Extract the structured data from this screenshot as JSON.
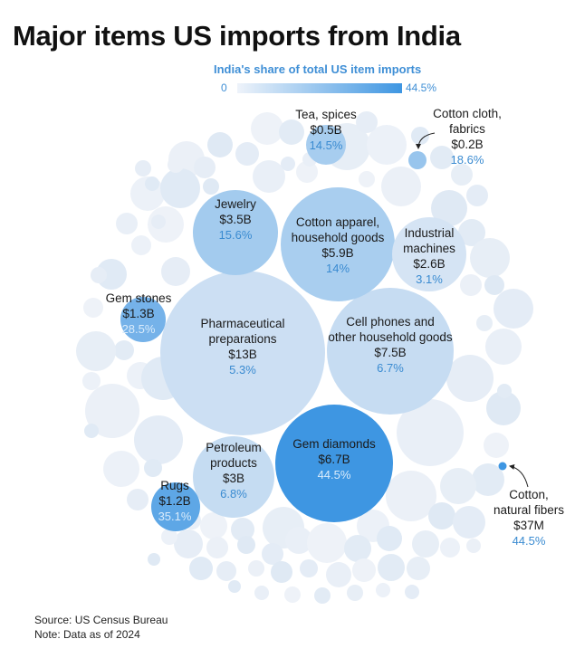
{
  "title": "Major items US imports from India",
  "legend": {
    "title": "India's share of total US item imports",
    "min_label": "0",
    "max_label": "44.5%",
    "max_value": 44.5
  },
  "source": "Source: US Census Bureau",
  "note": "Note: Data as of 2024",
  "colors": {
    "low": "#e6eef7",
    "high": "#3e96e2",
    "accent": "#3a8bd1"
  },
  "chart_data": {
    "type": "bubble",
    "title": "Major items US imports from India",
    "size_metric": "US import value from India",
    "color_metric": "India's share of total US item imports (%)",
    "items": [
      {
        "name": "Pharmaceutical preparations",
        "lines": [
          "Pharmaceutical",
          "preparations"
        ],
        "value_label": "$13B",
        "value_usd_b": 13,
        "share_label": "5.3%",
        "share": 5.3
      },
      {
        "name": "Gem diamonds",
        "lines": [
          "Gem diamonds"
        ],
        "value_label": "$6.7B",
        "value_usd_b": 6.7,
        "share_label": "44.5%",
        "share": 44.5
      },
      {
        "name": "Cell phones and other household goods",
        "lines": [
          "Cell phones and",
          "other household goods"
        ],
        "value_label": "$7.5B",
        "value_usd_b": 7.5,
        "share_label": "6.7%",
        "share": 6.7
      },
      {
        "name": "Cotton apparel, household goods",
        "lines": [
          "Cotton apparel,",
          "household goods"
        ],
        "value_label": "$5.9B",
        "value_usd_b": 5.9,
        "share_label": "14%",
        "share": 14
      },
      {
        "name": "Jewelry",
        "lines": [
          "Jewelry"
        ],
        "value_label": "$3.5B",
        "value_usd_b": 3.5,
        "share_label": "15.6%",
        "share": 15.6
      },
      {
        "name": "Petroleum products",
        "lines": [
          "Petroleum",
          "products"
        ],
        "value_label": "$3B",
        "value_usd_b": 3,
        "share_label": "6.8%",
        "share": 6.8
      },
      {
        "name": "Industrial machines",
        "lines": [
          "Industrial",
          "machines"
        ],
        "value_label": "$2.6B",
        "value_usd_b": 2.6,
        "share_label": "3.1%",
        "share": 3.1
      },
      {
        "name": "Gem stones",
        "lines": [
          "Gem stones"
        ],
        "value_label": "$1.3B",
        "value_usd_b": 1.3,
        "share_label": "28.5%",
        "share": 28.5
      },
      {
        "name": "Rugs",
        "lines": [
          "Rugs"
        ],
        "value_label": "$1.2B",
        "value_usd_b": 1.2,
        "share_label": "35.1%",
        "share": 35.1
      },
      {
        "name": "Tea, spices",
        "lines": [
          "Tea, spices"
        ],
        "value_label": "$0.5B",
        "value_usd_b": 0.5,
        "share_label": "14.5%",
        "share": 14.5
      },
      {
        "name": "Cotton cloth, fabrics",
        "lines": [
          "Cotton cloth,",
          "fabrics"
        ],
        "value_label": "$0.2B",
        "value_usd_b": 0.2,
        "share_label": "18.6%",
        "share": 18.6
      },
      {
        "name": "Cotton, natural fibers",
        "lines": [
          "Cotton,",
          "natural fibers"
        ],
        "value_label": "$37M",
        "value_usd_b": 0.037,
        "share_label": "44.5%",
        "share": 44.5
      }
    ]
  }
}
